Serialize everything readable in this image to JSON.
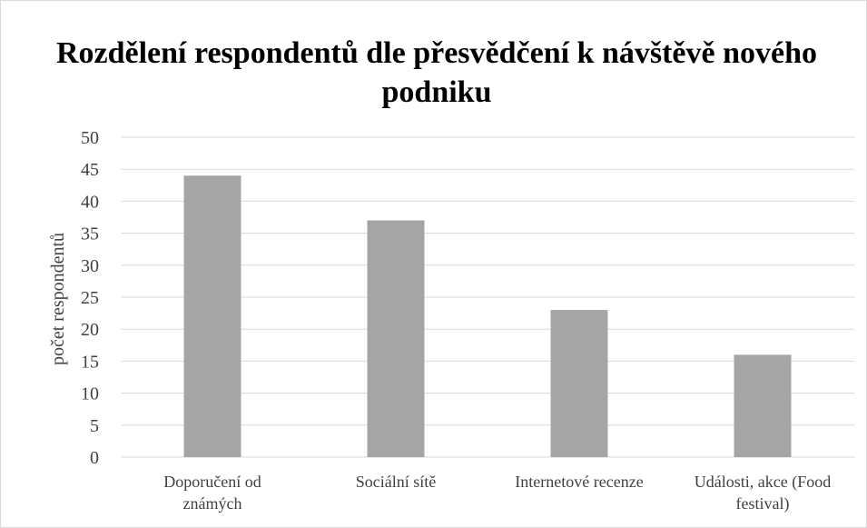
{
  "chart_data": {
    "type": "bar",
    "title": "Rozdělení respondentů dle přesvědčení k návštěvě nového podniku",
    "xlabel": "",
    "ylabel": "počet respondentů",
    "categories": [
      [
        "Doporučení od",
        "známých"
      ],
      [
        "Sociální sítě"
      ],
      [
        "Internetové recenze"
      ],
      [
        "Události, akce (Food",
        "festival)"
      ]
    ],
    "values": [
      44,
      37,
      23,
      16
    ],
    "ylim": [
      0,
      50
    ],
    "yticks": [
      0,
      5,
      10,
      15,
      20,
      25,
      30,
      35,
      40,
      45,
      50
    ],
    "grid": true,
    "legend": "none",
    "bar_color": "#a5a5a5",
    "grid_color": "#d9d9d9"
  }
}
